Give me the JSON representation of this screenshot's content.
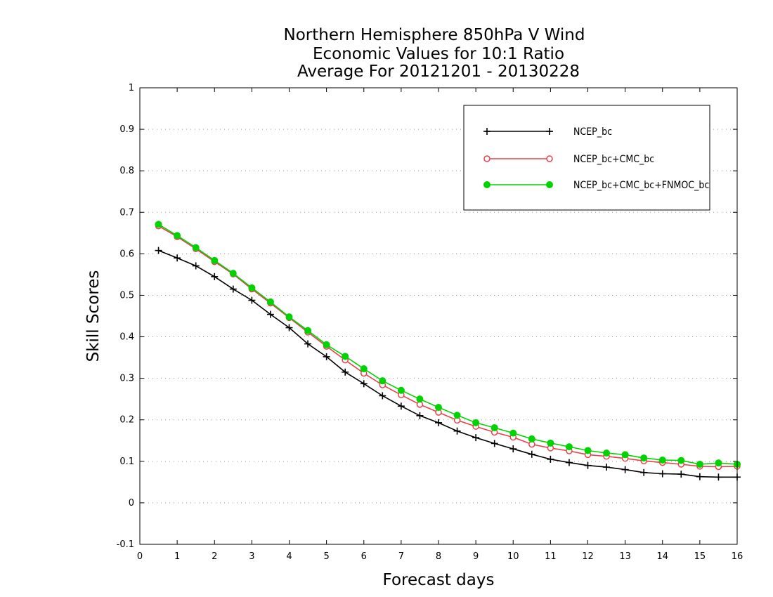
{
  "chart_data": {
    "type": "line",
    "title_lines": [
      "Northern Hemisphere 850hPa V Wind",
      "Economic Values for 10:1 Ratio",
      "Average For 20121201 - 20130228"
    ],
    "xlabel": "Forecast days",
    "ylabel": "Skill Scores",
    "xlim": [
      0,
      16
    ],
    "ylim": [
      -0.1,
      1
    ],
    "x_ticks": [
      "0",
      "1",
      "2",
      "3",
      "4",
      "5",
      "6",
      "7",
      "8",
      "9",
      "10",
      "11",
      "12",
      "13",
      "14",
      "15",
      "16"
    ],
    "y_ticks": [
      "-0.1",
      "0",
      "0.1",
      "0.2",
      "0.3",
      "0.4",
      "0.5",
      "0.6",
      "0.7",
      "0.8",
      "0.9",
      "1"
    ],
    "grid": true,
    "legend_position": "top-right",
    "x": [
      0.5,
      1,
      1.5,
      2,
      2.5,
      3,
      3.5,
      4,
      4.5,
      5,
      5.5,
      6,
      6.5,
      7,
      7.5,
      8,
      8.5,
      9,
      9.5,
      10,
      10.5,
      11,
      11.5,
      12,
      12.5,
      13,
      13.5,
      14,
      14.5,
      15,
      15.5,
      16
    ],
    "series": [
      {
        "name": "NCEP_bc",
        "color": "#000000",
        "marker": "plus",
        "values": [
          0.608,
          0.59,
          0.571,
          0.545,
          0.515,
          0.488,
          0.454,
          0.422,
          0.383,
          0.352,
          0.315,
          0.287,
          0.258,
          0.233,
          0.21,
          0.193,
          0.173,
          0.157,
          0.143,
          0.13,
          0.117,
          0.105,
          0.097,
          0.09,
          0.086,
          0.08,
          0.073,
          0.07,
          0.069,
          0.063,
          0.062,
          0.062
        ]
      },
      {
        "name": "NCEP_bc+CMC_bc",
        "color": "#e8414a",
        "marker": "open-circle",
        "values": [
          0.667,
          0.641,
          0.612,
          0.581,
          0.551,
          0.515,
          0.481,
          0.446,
          0.411,
          0.377,
          0.344,
          0.312,
          0.284,
          0.26,
          0.237,
          0.218,
          0.199,
          0.184,
          0.17,
          0.158,
          0.141,
          0.132,
          0.125,
          0.116,
          0.112,
          0.107,
          0.101,
          0.097,
          0.093,
          0.088,
          0.087,
          0.088
        ]
      },
      {
        "name": "NCEP_bc+CMC_bc+FNMOC_bc",
        "color": "#00d400",
        "marker": "filled-circle",
        "values": [
          0.671,
          0.644,
          0.615,
          0.584,
          0.553,
          0.518,
          0.484,
          0.448,
          0.415,
          0.381,
          0.353,
          0.323,
          0.294,
          0.271,
          0.25,
          0.23,
          0.211,
          0.193,
          0.181,
          0.168,
          0.154,
          0.144,
          0.135,
          0.126,
          0.12,
          0.116,
          0.108,
          0.103,
          0.102,
          0.093,
          0.096,
          0.093
        ]
      }
    ]
  }
}
